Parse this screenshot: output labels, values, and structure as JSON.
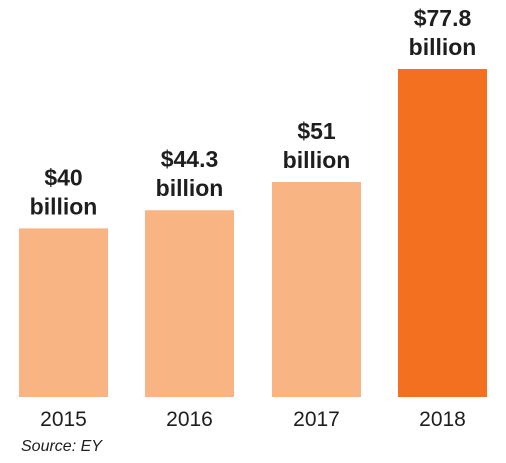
{
  "chart_data": {
    "type": "bar",
    "categories": [
      "2015",
      "2016",
      "2017",
      "2018"
    ],
    "values": [
      40,
      44.3,
      51,
      77.8
    ],
    "data_labels": [
      [
        "$40",
        "billion"
      ],
      [
        "$44.3",
        "billion"
      ],
      [
        "$51",
        "billion"
      ],
      [
        "$77.8",
        "billion"
      ]
    ],
    "title": "",
    "xlabel": "",
    "ylabel": "",
    "ylim": [
      0,
      77.8
    ],
    "grid": false,
    "legend": "none",
    "bar_colors": [
      "#f8b583",
      "#f8b583",
      "#f8b583",
      "#f37021"
    ]
  },
  "source": "Source: EY"
}
